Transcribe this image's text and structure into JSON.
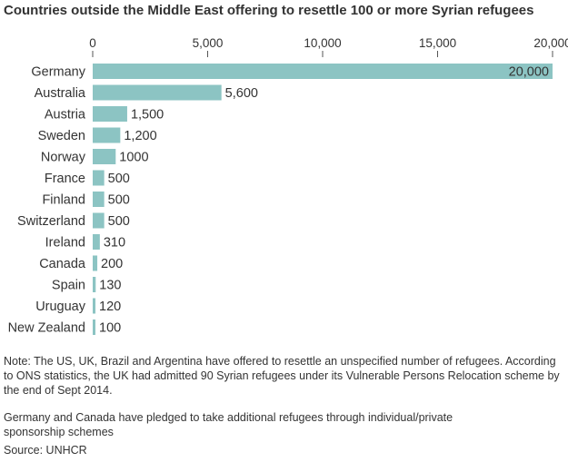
{
  "chart_data": {
    "type": "bar",
    "orientation": "horizontal",
    "title": "Countries outside the Middle East offering to resettle 100 or more Syrian refugees",
    "categories": [
      "Germany",
      "Australia",
      "Austria",
      "Sweden",
      "Norway",
      "France",
      "Finland",
      "Switzerland",
      "Ireland",
      "Canada",
      "Spain",
      "Uruguay",
      "New Zealand"
    ],
    "values": [
      20000,
      5600,
      1500,
      1200,
      1000,
      500,
      500,
      500,
      310,
      200,
      130,
      120,
      100
    ],
    "value_labels": [
      "20,000",
      "5,600",
      "1,500",
      "1,200",
      "1000",
      "500",
      "500",
      "500",
      "310",
      "200",
      "130",
      "120",
      "100"
    ],
    "xlim": [
      0,
      20000
    ],
    "ticks": [
      0,
      5000,
      10000,
      15000,
      20000
    ],
    "tick_labels": [
      "0",
      "5,000",
      "10,000",
      "15,000",
      "20,000"
    ],
    "axis_position": "top",
    "grid": false,
    "bar_color": "#8cc4c3"
  },
  "notes": {
    "note1": "Note: The US, UK, Brazil and Argentina have offered to resettle an unspecified number of refugees. According to ONS statistics, the UK had admitted 90 Syrian refugees under its Vulnerable Persons Relocation scheme by the end of Sept 2014.",
    "note2": "Germany and Canada have pledged to take additional refugees through individual/private sponsorship schemes",
    "source": "Source: UNHCR"
  }
}
